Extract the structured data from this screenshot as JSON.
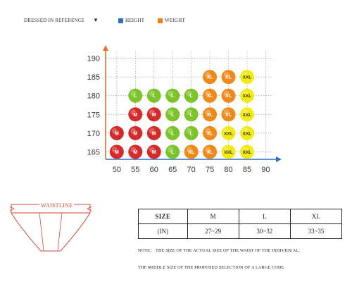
{
  "legend": {
    "dressed": "DRESSED IN REFERENCE",
    "height": "HEIGHT",
    "weight": "WEIGHT",
    "height_color": "#2f6fbf",
    "weight_color": "#ef7f1a"
  },
  "chart_data": {
    "type": "scatter",
    "title": "",
    "xlabel": "",
    "ylabel": "",
    "x_ticks": [
      50,
      55,
      60,
      65,
      70,
      75,
      80,
      85,
      90
    ],
    "y_ticks": [
      165,
      170,
      175,
      180,
      185,
      190
    ],
    "xlim": [
      47,
      92
    ],
    "ylim": [
      163,
      192
    ],
    "grid": true,
    "size_colors": {
      "M": "#d42a2a",
      "L": "#7cc42a",
      "XL": "#ef8a1a",
      "XXL": "#f2ea12"
    },
    "points": [
      {
        "x": 50,
        "y": 165,
        "size": "M"
      },
      {
        "x": 55,
        "y": 165,
        "size": "M"
      },
      {
        "x": 60,
        "y": 165,
        "size": "M"
      },
      {
        "x": 65,
        "y": 165,
        "size": "L"
      },
      {
        "x": 70,
        "y": 165,
        "size": "XL"
      },
      {
        "x": 75,
        "y": 165,
        "size": "XL"
      },
      {
        "x": 80,
        "y": 165,
        "size": "XXL"
      },
      {
        "x": 85,
        "y": 165,
        "size": "XXL"
      },
      {
        "x": 50,
        "y": 170,
        "size": "M"
      },
      {
        "x": 55,
        "y": 170,
        "size": "M"
      },
      {
        "x": 60,
        "y": 170,
        "size": "M"
      },
      {
        "x": 65,
        "y": 170,
        "size": "L"
      },
      {
        "x": 70,
        "y": 170,
        "size": "L"
      },
      {
        "x": 75,
        "y": 170,
        "size": "XL"
      },
      {
        "x": 80,
        "y": 170,
        "size": "XXL"
      },
      {
        "x": 85,
        "y": 170,
        "size": "XXL"
      },
      {
        "x": 55,
        "y": 175,
        "size": "M"
      },
      {
        "x": 60,
        "y": 175,
        "size": "M"
      },
      {
        "x": 65,
        "y": 175,
        "size": "L"
      },
      {
        "x": 70,
        "y": 175,
        "size": "L"
      },
      {
        "x": 75,
        "y": 175,
        "size": "XL"
      },
      {
        "x": 80,
        "y": 175,
        "size": "XL"
      },
      {
        "x": 85,
        "y": 175,
        "size": "XXL"
      },
      {
        "x": 55,
        "y": 180,
        "size": "L"
      },
      {
        "x": 60,
        "y": 180,
        "size": "L"
      },
      {
        "x": 65,
        "y": 180,
        "size": "L"
      },
      {
        "x": 70,
        "y": 180,
        "size": "L"
      },
      {
        "x": 75,
        "y": 180,
        "size": "XL"
      },
      {
        "x": 80,
        "y": 180,
        "size": "XL"
      },
      {
        "x": 85,
        "y": 180,
        "size": "XXL"
      },
      {
        "x": 75,
        "y": 185,
        "size": "XL"
      },
      {
        "x": 80,
        "y": 185,
        "size": "XL"
      },
      {
        "x": 85,
        "y": 185,
        "size": "XXL"
      }
    ]
  },
  "diagram": {
    "waistline": "WAISTLINE"
  },
  "size_table": {
    "size_label": "SIZE",
    "in_label": "(IN)",
    "sizes": [
      "M",
      "L",
      "XL"
    ],
    "waists": [
      "27~29",
      "30~32",
      "33~35"
    ]
  },
  "note_line1": "NOTE： THE SIZE OF THE ACTUAL SIZE OF THE WAIST OF THE INDIVIDUAL,",
  "note_line2": "THE MIDDLE SIZE OF THE PROPOSED SELECTION OF A LARGE CODE"
}
